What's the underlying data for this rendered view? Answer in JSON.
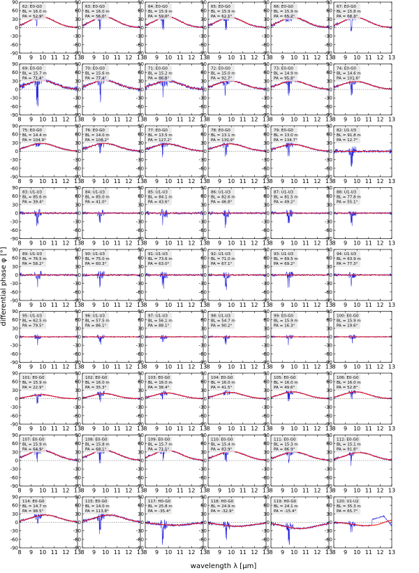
{
  "figure": {
    "xlabel": "wavelength λ [μm]",
    "ylabel": "differential phase φ [°]"
  },
  "axes": {
    "x_ticks": [
      8,
      9,
      10,
      11,
      12,
      13
    ],
    "y_ticks": [
      90,
      60,
      30,
      0,
      -30,
      -60,
      -90
    ],
    "xlim": [
      8,
      13
    ],
    "ylim": [
      -90,
      90
    ]
  },
  "colors": {
    "data": "#2222dd",
    "model": "#ee1111"
  },
  "chart_data": {
    "type": "line",
    "layout": "small multiples, 9 rows x 6 columns",
    "series_kinds": [
      "measured differential phase",
      "model"
    ],
    "panels": [
      {
        "id": "62",
        "baseline": "E0-G0",
        "bl": "16.0 m",
        "pa": "52.9°",
        "amp": 38,
        "peak": 9.9,
        "width": 1.1,
        "noise": 0.35
      },
      {
        "id": "63",
        "baseline": "E0-G0",
        "bl": "16.0 m",
        "pa": "56.0°",
        "amp": 38,
        "peak": 9.9,
        "width": 1.1,
        "noise": 0.45
      },
      {
        "id": "64",
        "baseline": "E0-G0",
        "bl": "15.9 m",
        "pa": "59.0°",
        "amp": 38,
        "peak": 9.9,
        "width": 1.1,
        "noise": 0.45
      },
      {
        "id": "65",
        "baseline": "E0-G0",
        "bl": "15.9 m",
        "pa": "62.1°",
        "amp": 36,
        "peak": 9.9,
        "width": 1.1,
        "noise": 0.5
      },
      {
        "id": "66",
        "baseline": "E0-G0",
        "bl": "15.9 m",
        "pa": "65.2°",
        "amp": 36,
        "peak": 9.9,
        "width": 1.1,
        "noise": 0.6
      },
      {
        "id": "67",
        "baseline": "E0-G0",
        "bl": "15.8 m",
        "pa": "68.3°",
        "amp": 36,
        "peak": 9.9,
        "width": 1.1,
        "noise": 0.45
      },
      {
        "id": "69",
        "baseline": "E0-G0",
        "bl": "15.7 m",
        "pa": "71.4°",
        "amp": 32,
        "peak": 9.9,
        "width": 1.2,
        "noise": 0.9
      },
      {
        "id": "70",
        "baseline": "E0-G0",
        "bl": "15.6 m",
        "pa": "77.4°",
        "amp": 32,
        "peak": 9.9,
        "width": 1.2,
        "noise": 0.8
      },
      {
        "id": "71",
        "baseline": "E0-G0",
        "bl": "15.2 m",
        "pa": "86.8°",
        "amp": 30,
        "peak": 9.9,
        "width": 1.2,
        "noise": 0.9
      },
      {
        "id": "72",
        "baseline": "E0-G0",
        "bl": "15.0 m",
        "pa": "92.7°",
        "amp": 30,
        "peak": 9.9,
        "width": 1.2,
        "noise": 0.6
      },
      {
        "id": "73",
        "baseline": "E0-G0",
        "bl": "14.9 m",
        "pa": "95.8°",
        "amp": 30,
        "peak": 9.9,
        "width": 1.2,
        "noise": 0.5
      },
      {
        "id": "74",
        "baseline": "E0-G0",
        "bl": "14.6 m",
        "pa": "101.6°",
        "amp": 28,
        "peak": 9.9,
        "width": 1.2,
        "noise": 0.45
      },
      {
        "id": "75",
        "baseline": "E0-G0",
        "bl": "14.4 m",
        "pa": "104.9°",
        "amp": 28,
        "peak": 9.9,
        "width": 1.2,
        "noise": 0.45
      },
      {
        "id": "76",
        "baseline": "E0-G0",
        "bl": "14.0 m",
        "pa": "108.2°",
        "amp": 28,
        "peak": 9.9,
        "width": 1.2,
        "noise": 0.6
      },
      {
        "id": "77",
        "baseline": "E0-G0",
        "bl": "13.5 m",
        "pa": "127.2°",
        "amp": 26,
        "peak": 9.9,
        "width": 1.2,
        "noise": 0.6
      },
      {
        "id": "78",
        "baseline": "E0-G0",
        "bl": "13.1 m",
        "pa": "130.9°",
        "amp": 26,
        "peak": 9.9,
        "width": 1.2,
        "noise": 0.5
      },
      {
        "id": "79",
        "baseline": "E0-G0",
        "bl": "13.0 m",
        "pa": "134.7°",
        "amp": 24,
        "peak": 9.9,
        "width": 1.2,
        "noise": 0.45
      },
      {
        "id": "82",
        "baseline": "U1-U3",
        "bl": "91.8 m",
        "pa": "12.7°",
        "amp": 0,
        "peak": 9.9,
        "width": 1.2,
        "noise": 0.7
      },
      {
        "id": "83",
        "baseline": "U1-U3",
        "bl": "85.6 m",
        "pa": "39.4°",
        "amp": 0,
        "peak": 9.9,
        "width": 1.2,
        "noise": 0.55
      },
      {
        "id": "84",
        "baseline": "U1-U3",
        "bl": "85.0 m",
        "pa": "41.0°",
        "amp": 0,
        "peak": 9.9,
        "width": 1.2,
        "noise": 0.45
      },
      {
        "id": "85",
        "baseline": "U1-U3",
        "bl": "84.1 m",
        "pa": "43.6°",
        "amp": 0,
        "peak": 9.9,
        "width": 1.2,
        "noise": 0.6
      },
      {
        "id": "86",
        "baseline": "U1-U3",
        "bl": "82.6 m",
        "pa": "46.8°",
        "amp": 0,
        "peak": 9.9,
        "width": 1.2,
        "noise": 0.55
      },
      {
        "id": "87",
        "baseline": "U1-U3",
        "bl": "81.5 m",
        "pa": "49.2°",
        "amp": 0,
        "peak": 9.9,
        "width": 1.2,
        "noise": 0.5
      },
      {
        "id": "88",
        "baseline": "U1-U3",
        "bl": "77.8 m",
        "pa": "55.1°",
        "amp": 0,
        "peak": 9.9,
        "width": 1.2,
        "noise": 0.45
      },
      {
        "id": "89",
        "baseline": "U1-U3",
        "bl": "76.5 m",
        "pa": "58.2°",
        "amp": 0,
        "peak": 9.9,
        "width": 1.2,
        "noise": 0.6
      },
      {
        "id": "90",
        "baseline": "U1-U3",
        "bl": "75.0 m",
        "pa": "60.3°",
        "amp": 0,
        "peak": 9.9,
        "width": 1.2,
        "noise": 0.55
      },
      {
        "id": "91",
        "baseline": "U1-U3",
        "bl": "73.6 m",
        "pa": "63.0°",
        "amp": 0,
        "peak": 9.9,
        "width": 1.2,
        "noise": 0.5
      },
      {
        "id": "92",
        "baseline": "U1-U3",
        "bl": "71.0 m",
        "pa": "67.1°",
        "amp": 0,
        "peak": 9.9,
        "width": 1.2,
        "noise": 0.5
      },
      {
        "id": "93",
        "baseline": "U1-U3",
        "bl": "69.5 m",
        "pa": "69.2°",
        "amp": 0,
        "peak": 9.9,
        "width": 1.2,
        "noise": 0.45
      },
      {
        "id": "94",
        "baseline": "U1-U3",
        "bl": "63.9 m",
        "pa": "77.3°",
        "amp": 0,
        "peak": 9.9,
        "width": 1.2,
        "noise": 0.45
      },
      {
        "id": "95",
        "baseline": "U1-U3",
        "bl": "62.5 m",
        "pa": "79.5°",
        "amp": 0,
        "peak": 9.9,
        "width": 1.2,
        "noise": 0.35
      },
      {
        "id": "96",
        "baseline": "U1-U3",
        "bl": "57.5 m",
        "pa": "86.1°",
        "amp": 0,
        "peak": 9.9,
        "width": 1.2,
        "noise": 0.3
      },
      {
        "id": "97",
        "baseline": "U1-U3",
        "bl": "56.1 m",
        "pa": "88.1°",
        "amp": 0,
        "peak": 9.9,
        "width": 1.2,
        "noise": 0.3
      },
      {
        "id": "98",
        "baseline": "U1-U3",
        "bl": "54.7 m",
        "pa": "90.2°",
        "amp": 0,
        "peak": 9.9,
        "width": 1.2,
        "noise": 0.3
      },
      {
        "id": "99",
        "baseline": "E0-G0",
        "bl": "15.9 m",
        "pa": "16.3°",
        "amp": 0,
        "peak": 9.9,
        "width": 1.2,
        "noise": 0.3
      },
      {
        "id": "100",
        "baseline": "E0-G0",
        "bl": "15.9 m",
        "pa": "19.6°",
        "amp": 0,
        "peak": 9.9,
        "width": 1.2,
        "noise": 0.3
      },
      {
        "id": "101",
        "baseline": "E0-G0",
        "bl": "15.9 m",
        "pa": "22.9°",
        "amp": 14,
        "peak": 9.9,
        "width": 1.0,
        "noise": 0.3
      },
      {
        "id": "102",
        "baseline": "E0-G0",
        "bl": "16.0 m",
        "pa": "35.3°",
        "amp": 18,
        "peak": 9.9,
        "width": 1.0,
        "noise": 0.35
      },
      {
        "id": "103",
        "baseline": "E0-G0",
        "bl": "16.0 m",
        "pa": "38.4°",
        "amp": 20,
        "peak": 9.9,
        "width": 1.1,
        "noise": 0.35
      },
      {
        "id": "104",
        "baseline": "E0-G0",
        "bl": "16.0 m",
        "pa": "41.5°",
        "amp": 22,
        "peak": 9.9,
        "width": 1.1,
        "noise": 0.35
      },
      {
        "id": "105",
        "baseline": "E0-G0",
        "bl": "16.0 m",
        "pa": "49.6°",
        "amp": 24,
        "peak": 9.9,
        "width": 1.1,
        "noise": 0.35
      },
      {
        "id": "106",
        "baseline": "E0-G0",
        "bl": "16.0 m",
        "pa": "52.8°",
        "amp": 24,
        "peak": 9.9,
        "width": 1.1,
        "noise": 0.35
      },
      {
        "id": "107",
        "baseline": "E0-G0",
        "bl": "15.9 m",
        "pa": "64.9°",
        "amp": 36,
        "peak": 9.9,
        "width": 1.2,
        "noise": 0.5
      },
      {
        "id": "108",
        "baseline": "E0-G0",
        "bl": "15.8 m",
        "pa": "68.1°",
        "amp": 36,
        "peak": 9.9,
        "width": 1.2,
        "noise": 0.45
      },
      {
        "id": "109",
        "baseline": "E0-G0",
        "bl": "15.7 m",
        "pa": "71.1°",
        "amp": 36,
        "peak": 9.9,
        "width": 1.2,
        "noise": 0.45
      },
      {
        "id": "110",
        "baseline": "E0-G0",
        "bl": "15.4 m",
        "pa": "83.9°",
        "amp": 32,
        "peak": 10.0,
        "width": 1.2,
        "noise": 0.4
      },
      {
        "id": "111",
        "baseline": "E0-G0",
        "bl": "15.3 m",
        "pa": "86.9°",
        "amp": 30,
        "peak": 10.0,
        "width": 1.2,
        "noise": 0.45
      },
      {
        "id": "112",
        "baseline": "E0-G0",
        "bl": "15.1 m",
        "pa": "91.8°",
        "amp": 28,
        "peak": 10.2,
        "width": 1.2,
        "noise": 0.4
      },
      {
        "id": "114",
        "baseline": "E0-G0",
        "bl": "14.7 m",
        "pa": "98.5°",
        "amp": 26,
        "peak": 10.2,
        "width": 1.2,
        "noise": 0.45
      },
      {
        "id": "115",
        "baseline": "E0-G0",
        "bl": "14.0 m",
        "pa": "113.8°",
        "amp": 26,
        "peak": 10.3,
        "width": 1.2,
        "noise": 0.6
      },
      {
        "id": "117",
        "baseline": "H0-G0",
        "bl": "25.8 m",
        "pa": "-35.4°",
        "amp": -10,
        "peak": 10.5,
        "width": 1.4,
        "noise": 0.7
      },
      {
        "id": "118",
        "baseline": "H0-G0",
        "bl": "24.9 m",
        "pa": "-32.9°",
        "amp": -14,
        "peak": 10.5,
        "width": 1.4,
        "noise": 0.55
      },
      {
        "id": "119",
        "baseline": "H0-G0",
        "bl": "24.1 m",
        "pa": "-15.4°",
        "amp": -22,
        "peak": 10.5,
        "width": 1.4,
        "noise": 0.6
      },
      {
        "id": "120",
        "baseline": "U1-U2",
        "bl": "35.3 m",
        "pa": "65.7°",
        "amp": -12,
        "peak": 10.8,
        "width": 1.1,
        "noise": 0.35
      }
    ]
  }
}
